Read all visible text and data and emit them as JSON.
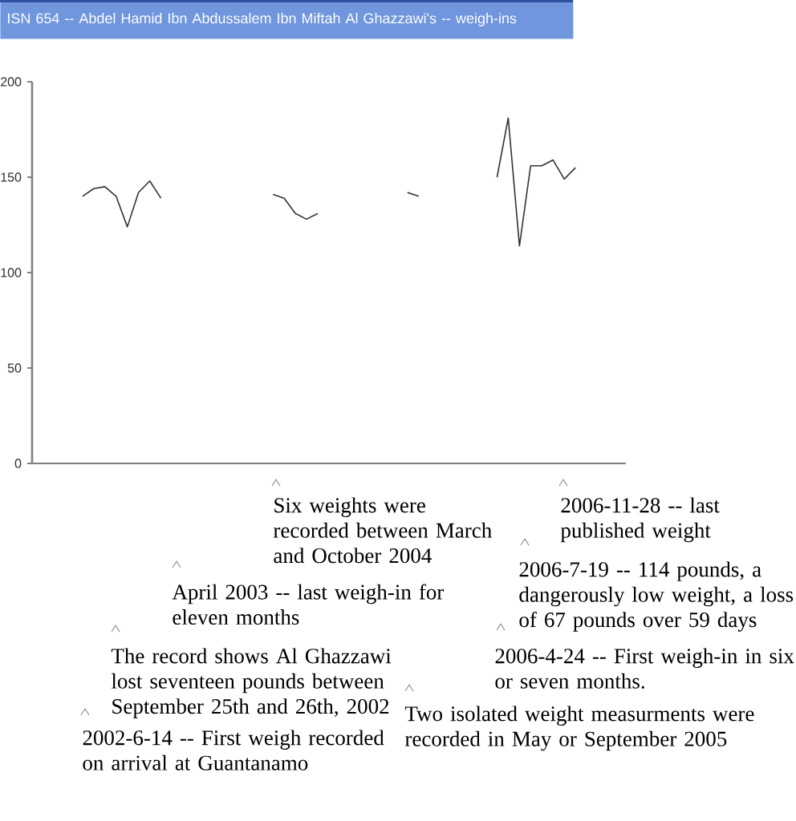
{
  "chart_data": {
    "type": "line",
    "title": "ISN 654 -- Abdel Hamid Ibn Abdussalem Ibn Miftah Al Ghazzawi's -- weigh-ins",
    "categories": [
      null,
      null,
      null,
      null,
      null,
      null,
      null,
      null,
      null,
      null,
      null,
      null,
      null,
      null,
      null,
      null,
      null,
      null,
      null,
      null,
      null,
      null,
      null,
      null,
      null,
      null,
      null,
      null,
      null,
      null,
      null,
      null,
      null,
      null,
      null,
      null,
      null,
      null,
      null,
      null,
      null,
      null,
      null,
      null,
      null,
      null,
      null,
      null,
      null,
      null,
      null,
      null,
      null
    ],
    "series": [
      {
        "color": "#333333",
        "values": [
          null,
          null,
          null,
          null,
          140,
          144,
          145,
          140,
          124,
          142,
          148,
          139,
          null,
          null,
          null,
          null,
          null,
          null,
          null,
          null,
          null,
          141,
          139,
          131,
          128,
          131,
          null,
          null,
          null,
          null,
          null,
          null,
          null,
          142,
          140,
          null,
          null,
          null,
          null,
          null,
          null,
          150,
          181,
          114,
          156,
          156,
          159,
          149,
          155,
          null,
          null,
          null,
          null
        ]
      }
    ],
    "ylim": [
      0,
      200
    ],
    "yticks": [
      0,
      50,
      100,
      150,
      200
    ],
    "tick_labels": "y",
    "annotations": [
      "Six weights were recorded between March and October 2004",
      "2006-11-28 -- last published weight",
      "April 2003 -- last weigh-in for eleven months",
      "2006-7-19 -- 114 pounds, a dangerously low weight, a loss of 67 pounds over 59 days",
      "The record shows Al Ghazzawi lost seventeen pounds between September 25th and 26th, 2002",
      "2006-4-24 -- First weigh-in in six or seven months.",
      "2002-6-14 -- First weigh recorded on arrival at Guantanamo",
      "Two isolated weight measurments were recorded in May or September 2005"
    ]
  }
}
